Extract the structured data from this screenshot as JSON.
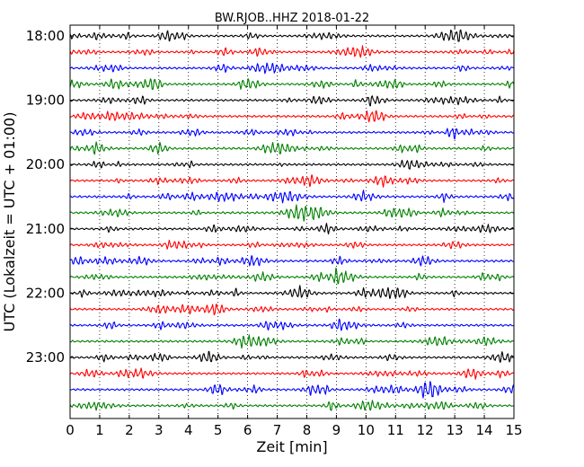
{
  "chart_data": {
    "type": "line",
    "title": "BW.RJOB..HHZ 2018-01-22",
    "xlabel": "Zeit  [min]",
    "ylabel": "UTC (Lokalzeit = UTC + 01:00)",
    "xlim": [
      0,
      15
    ],
    "x_ticks": [
      "0",
      "1",
      "2",
      "3",
      "4",
      "5",
      "6",
      "7",
      "8",
      "9",
      "10",
      "11",
      "12",
      "13",
      "14",
      "15"
    ],
    "y_ticks": [
      {
        "label": "18:00",
        "row": 0
      },
      {
        "label": "19:00",
        "row": 4
      },
      {
        "label": "20:00",
        "row": 8
      },
      {
        "label": "21:00",
        "row": 12
      },
      {
        "label": "22:00",
        "row": 16
      },
      {
        "label": "23:00",
        "row": 20
      }
    ],
    "grid": "vertical dotted at each minute",
    "trace_interval_minutes": 15,
    "trace_colors": [
      "#000000",
      "#ff0000",
      "#0000ff",
      "#008000"
    ],
    "traces": [
      {
        "start": "18:00"
      },
      {
        "start": "18:15"
      },
      {
        "start": "18:30"
      },
      {
        "start": "18:45"
      },
      {
        "start": "19:00"
      },
      {
        "start": "19:15"
      },
      {
        "start": "19:30"
      },
      {
        "start": "19:45"
      },
      {
        "start": "20:00"
      },
      {
        "start": "20:15"
      },
      {
        "start": "20:30"
      },
      {
        "start": "20:45"
      },
      {
        "start": "21:00"
      },
      {
        "start": "21:15"
      },
      {
        "start": "21:30"
      },
      {
        "start": "21:45"
      },
      {
        "start": "22:00"
      },
      {
        "start": "22:15"
      },
      {
        "start": "22:30"
      },
      {
        "start": "22:45"
      },
      {
        "start": "23:00"
      },
      {
        "start": "23:15"
      },
      {
        "start": "23:30"
      },
      {
        "start": "23:45"
      }
    ]
  }
}
